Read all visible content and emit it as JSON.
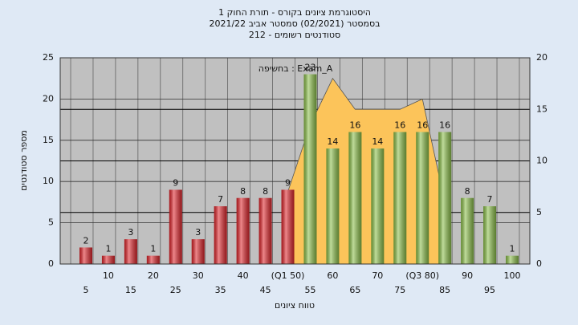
{
  "chart_data": {
    "type": "bar",
    "title": [
      "היסטוגרמת ציונים בקורס - תורת החוק 1",
      "בסמסטר  (02/2021)  סמסטר אביב 2021/22",
      "סטודנטים רשומים - 212"
    ],
    "annotation": "בחשיפה : Exam_A",
    "y_label": "מספר סטודנטים",
    "x_label": "טווח ציונים",
    "categories": [
      "5",
      "10",
      "15",
      "20",
      "25",
      "30",
      "35",
      "40",
      "45",
      "(Q1 50)",
      "55",
      "60",
      "65",
      "70",
      "75",
      "(Q3 80)",
      "85",
      "90",
      "95",
      "100"
    ],
    "series": [
      {
        "values": [
          2,
          1,
          3,
          1,
          9,
          3,
          7,
          8,
          8,
          9,
          23,
          14,
          16,
          14,
          16,
          16,
          16,
          8,
          7,
          1
        ],
        "colors": [
          "#e0252b",
          "#e0252b",
          "#e0252b",
          "#e0252b",
          "#e0252b",
          "#e0252b",
          "#e0252b",
          "#e0252b",
          "#e0252b",
          "#e0252b",
          "#8cc04a",
          "#8cc04a",
          "#8cc04a",
          "#8cc04a",
          "#8cc04a",
          "#8cc04a",
          "#8cc04a",
          "#8cc04a",
          "#8cc04a",
          "#8cc04a"
        ]
      },
      {
        "type": "area",
        "axis": "y2",
        "color": "#fcc45a",
        "values": [
          null,
          null,
          null,
          null,
          null,
          null,
          null,
          null,
          null,
          7,
          13.5,
          18,
          15,
          15,
          15,
          16,
          6,
          null,
          null,
          null
        ]
      }
    ],
    "ylim": [
      0,
      25
    ],
    "yticks": [
      0,
      5,
      10,
      15,
      20,
      25
    ],
    "y2lim": [
      0,
      20
    ],
    "y2ticks": [
      0,
      5,
      10,
      15,
      20
    ],
    "grid": true
  }
}
